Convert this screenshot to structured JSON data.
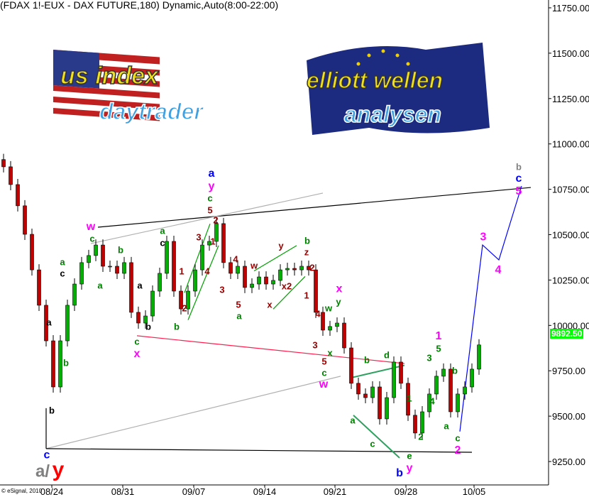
{
  "title": "(FDAX 1!-EUX - DAX FUTURE,180) Dynamic,Auto(8:00-22:00)",
  "copyright": "© eSignal, 2010",
  "logos": {
    "left": {
      "line1": "us index",
      "line2": "daytrader"
    },
    "right": {
      "line1": "elliott wellen",
      "line2": "analysen"
    }
  },
  "colors": {
    "up": "#00b000",
    "down": "#c00000",
    "last_price_bg": "#00ff00"
  },
  "chart_data": {
    "type": "candlestick",
    "title": "(FDAX 1!-EUX - DAX FUTURE,180) Dynamic,Auto(8:00-22:00)",
    "ylim": [
      9121,
      11793
    ],
    "y_ticks": [
      "11750.00",
      "11500.00",
      "11250.00",
      "11000.00",
      "10750.00",
      "10500.00",
      "10250.00",
      "10000.00",
      "9750.00",
      "9500.00",
      "9250.00"
    ],
    "y_tick_values": [
      11750,
      11500,
      11250,
      11000,
      10750,
      10500,
      10250,
      10000,
      9750,
      9500,
      9250
    ],
    "x_ticks": [
      {
        "label": "08/24",
        "bar": 6.8
      },
      {
        "label": "08/31",
        "bar": 16.8
      },
      {
        "label": "09/07",
        "bar": 26.8
      },
      {
        "label": "09/14",
        "bar": 36.8
      },
      {
        "label": "09/21",
        "bar": 46.7
      },
      {
        "label": "09/28",
        "bar": 56.7
      },
      {
        "label": "10/05",
        "bar": 66.3
      }
    ],
    "last_price": "9892.50",
    "close": [
      10874,
      10776,
      10659,
      10502,
      10306,
      10111,
      9915,
      9661,
      9915,
      10111,
      10228,
      10346,
      10385,
      10443,
      10326,
      10326,
      10287,
      10346,
      10072,
      10013,
      10052,
      10189,
      10287,
      10463,
      10189,
      10091,
      10189,
      10306,
      10443,
      10463,
      10561,
      10346,
      10287,
      10326,
      10209,
      10228,
      10267,
      10228,
      10248,
      10306,
      10314,
      10306,
      10326,
      10306,
      10072,
      9974,
      9994,
      10013,
      9876,
      9681,
      9622,
      9602,
      9661,
      9485,
      9602,
      9798,
      9681,
      9505,
      9407,
      9524,
      9622,
      9720,
      9759,
      9524,
      9622,
      9661,
      9759,
      9892.5
    ],
    "lines": [
      {
        "name": "upper-resistance-line",
        "color": "#000000",
        "pts": [
          [
            13.3,
            10541
          ],
          [
            74.3,
            10760
          ]
        ]
      },
      {
        "name": "upper-gray-line",
        "color": "#b0b0b0",
        "pts": [
          [
            12.3,
            10451
          ],
          [
            45,
            10729
          ]
        ]
      },
      {
        "name": "red-trend-line",
        "color": "#ff2050",
        "pts": [
          [
            18.8,
            9943
          ],
          [
            56.5,
            9790
          ]
        ]
      },
      {
        "name": "lower-gray-line",
        "color": "#b0b0b0",
        "pts": [
          [
            6,
            9321
          ],
          [
            47.5,
            9720
          ]
        ]
      },
      {
        "name": "bottom-support-line",
        "color": "#000000",
        "pts": [
          [
            6,
            9321
          ],
          [
            66,
            9301
          ]
        ]
      },
      {
        "name": "low-vertical-line",
        "color": "#000000",
        "pts": [
          [
            6,
            9544
          ],
          [
            6,
            9321
          ]
        ]
      },
      {
        "name": "green-channel-upper",
        "color": "#00a000",
        "pts": [
          [
            25.5,
            10180
          ],
          [
            29.1,
            10560
          ]
        ]
      },
      {
        "name": "green-channel-lower",
        "color": "#00a000",
        "pts": [
          [
            26,
            10030
          ],
          [
            30.3,
            10440
          ]
        ]
      },
      {
        "name": "green-wedge-upper",
        "color": "#00a000",
        "pts": [
          [
            35.3,
            10300
          ],
          [
            41.3,
            10440
          ]
        ]
      },
      {
        "name": "green-wedge-lower",
        "color": "#00a000",
        "pts": [
          [
            38,
            10090
          ],
          [
            42.5,
            10270
          ]
        ]
      },
      {
        "name": "green-triangle-upper",
        "color": "#30a060",
        "pts": [
          [
            48.8,
            9710
          ],
          [
            56.5,
            9780
          ]
        ]
      },
      {
        "name": "green-triangle-lower",
        "color": "#30a060",
        "pts": [
          [
            49.3,
            9505
          ],
          [
            55.8,
            9270
          ]
        ]
      },
      {
        "name": "blue-projection-path",
        "color": "#0000ff",
        "pts": [
          [
            64.3,
            9415
          ],
          [
            67.5,
            10443
          ],
          [
            69.8,
            10361
          ],
          [
            73,
            10768
          ]
        ]
      }
    ],
    "annotations": [
      {
        "t": "w",
        "c": "#ff00ff",
        "bar": 12.3,
        "p": 10541
      },
      {
        "t": "c",
        "c": "#008000",
        "bar": 12.5,
        "p": 10490
      },
      {
        "t": "a",
        "c": "#008000",
        "bar": 8.3,
        "p": 10346
      },
      {
        "t": "c",
        "c": "#000000",
        "bar": 8.3,
        "p": 10299
      },
      {
        "t": "a",
        "c": "#000000",
        "bar": 6.4,
        "p": 10013
      },
      {
        "t": "b",
        "c": "#000000",
        "bar": 6.8,
        "p": 9528
      },
      {
        "t": "b",
        "c": "#008000",
        "bar": 8.8,
        "p": 9790
      },
      {
        "t": "a",
        "c": "#008000",
        "bar": 13.6,
        "p": 10217
      },
      {
        "t": "b",
        "c": "#008000",
        "bar": 16.5,
        "p": 10412
      },
      {
        "t": "c",
        "c": "#008000",
        "bar": 18.8,
        "p": 9907
      },
      {
        "t": "x",
        "c": "#ff00ff",
        "bar": 18.8,
        "p": 9857
      },
      {
        "t": "a",
        "c": "#000000",
        "bar": 19.2,
        "p": 10217
      },
      {
        "t": "b",
        "c": "#000000",
        "bar": 20.4,
        "p": 9990
      },
      {
        "t": "a",
        "c": "#008000",
        "bar": 22.4,
        "p": 10518
      },
      {
        "t": "c",
        "c": "#000000",
        "bar": 22.4,
        "p": 10475
      },
      {
        "t": "1",
        "c": "#990000",
        "bar": 25.1,
        "p": 10295
      },
      {
        "t": "2",
        "c": "#990000",
        "bar": 25.5,
        "p": 10091
      },
      {
        "t": "b",
        "c": "#008000",
        "bar": 24.4,
        "p": 9990
      },
      {
        "t": "3",
        "c": "#990000",
        "bar": 27.5,
        "p": 10483
      },
      {
        "t": "4",
        "c": "#990000",
        "bar": 28.7,
        "p": 10295
      },
      {
        "t": "5",
        "c": "#990000",
        "bar": 29.1,
        "p": 10631
      },
      {
        "t": "c",
        "c": "#008000",
        "bar": 29.1,
        "p": 10666
      },
      {
        "t": "y",
        "c": "#ff00ff",
        "bar": 29.3,
        "p": 10733
      },
      {
        "t": "a",
        "c": "#0000ff",
        "bar": 29.3,
        "p": 10780
      },
      {
        "t": "2",
        "c": "#990000",
        "bar": 29.9,
        "p": 10576
      },
      {
        "t": "1",
        "c": "#990000",
        "bar": 29.5,
        "p": 10459
      },
      {
        "t": "3",
        "c": "#990000",
        "bar": 30.8,
        "p": 10193
      },
      {
        "t": "4",
        "c": "#990000",
        "bar": 32.7,
        "p": 10361
      },
      {
        "t": "5",
        "c": "#990000",
        "bar": 33.1,
        "p": 10111
      },
      {
        "t": "a",
        "c": "#008000",
        "bar": 33.2,
        "p": 10072
      },
      {
        "t": "w",
        "c": "#990000",
        "bar": 35.3,
        "p": 10326
      },
      {
        "t": "x",
        "c": "#990000",
        "bar": 37.5,
        "p": 10111
      },
      {
        "t": "y",
        "c": "#990000",
        "bar": 39.1,
        "p": 10436
      },
      {
        "t": "x2",
        "c": "#990000",
        "bar": 39.9,
        "p": 10213
      },
      {
        "t": "b",
        "c": "#008000",
        "bar": 42.8,
        "p": 10463
      },
      {
        "t": "z",
        "c": "#990000",
        "bar": 42.7,
        "p": 10424
      },
      {
        "t": "2",
        "c": "#990000",
        "bar": 43.5,
        "p": 10314
      },
      {
        "t": "1",
        "c": "#990000",
        "bar": 42.7,
        "p": 10162
      },
      {
        "t": "4",
        "c": "#990000",
        "bar": 44.3,
        "p": 10060
      },
      {
        "t": "3",
        "c": "#990000",
        "bar": 43.9,
        "p": 9888
      },
      {
        "t": "w",
        "c": "#008000",
        "bar": 45.8,
        "p": 10091
      },
      {
        "t": "y",
        "c": "#008000",
        "bar": 47.2,
        "p": 10127
      },
      {
        "t": "x",
        "c": "#ff00ff",
        "bar": 47.3,
        "p": 10177
      },
      {
        "t": "x",
        "c": "#008000",
        "bar": 46,
        "p": 9845
      },
      {
        "t": "5",
        "c": "#990000",
        "bar": 45.2,
        "p": 9798
      },
      {
        "t": "c",
        "c": "#008000",
        "bar": 45.2,
        "p": 9759
      },
      {
        "t": "w",
        "c": "#ff00ff",
        "bar": 45.1,
        "p": 9712
      },
      {
        "t": "b",
        "c": "#008000",
        "bar": 51.2,
        "p": 9806
      },
      {
        "t": "d",
        "c": "#008000",
        "bar": 54,
        "p": 9833
      },
      {
        "t": "a",
        "c": "#008000",
        "bar": 49.2,
        "p": 9473
      },
      {
        "t": "c",
        "c": "#008000",
        "bar": 52,
        "p": 9344
      },
      {
        "t": "e",
        "c": "#008000",
        "bar": 57.2,
        "p": 9278
      },
      {
        "t": "y",
        "c": "#ff00ff",
        "bar": 57.2,
        "p": 9235
      },
      {
        "t": "b",
        "c": "#0000ff",
        "bar": 57.2,
        "p": 9160
      },
      {
        "t": "1",
        "c": "#008000",
        "bar": 57.2,
        "p": 9594
      },
      {
        "t": "2",
        "c": "#008000",
        "bar": 58.8,
        "p": 9383
      },
      {
        "t": "3",
        "c": "#008000",
        "bar": 60,
        "p": 9818
      },
      {
        "t": "4",
        "c": "#008000",
        "bar": 60.4,
        "p": 9579
      },
      {
        "t": "5",
        "c": "#008000",
        "bar": 61.3,
        "p": 9868
      },
      {
        "t": "1",
        "c": "#ff00ff",
        "bar": 61.3,
        "p": 9923
      },
      {
        "t": "a",
        "c": "#008000",
        "bar": 62.4,
        "p": 9442
      },
      {
        "t": "b",
        "c": "#008000",
        "bar": 63.6,
        "p": 9747
      },
      {
        "t": "c",
        "c": "#008000",
        "bar": 64,
        "p": 9375
      },
      {
        "t": "2",
        "c": "#ff00ff",
        "bar": 64,
        "p": 9325
      },
      {
        "t": "3",
        "c": "#ff00ff",
        "bar": 67.6,
        "p": 10486
      },
      {
        "t": "4",
        "c": "#ff00ff",
        "bar": 69.7,
        "p": 10303
      },
      {
        "t": "b",
        "c": "#808080",
        "bar": 72.6,
        "p": 10870
      },
      {
        "t": "c",
        "c": "#0000ff",
        "bar": 72.6,
        "p": 10815
      },
      {
        "t": "5",
        "c": "#ff00ff",
        "bar": 72.6,
        "p": 10768
      },
      {
        "t": "c",
        "c": "#0000ff",
        "bar": 6.1,
        "p": 9285
      },
      {
        "t": "a/",
        "c": "#808080",
        "bar": 5.5,
        "p": 9199,
        "big": true
      },
      {
        "t": "y",
        "c": "#ff0000",
        "bar": 7.7,
        "p": 9199,
        "big": true
      }
    ]
  }
}
